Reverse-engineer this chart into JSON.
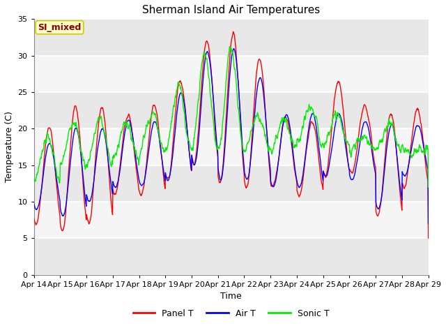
{
  "title": "Sherman Island Air Temperatures",
  "xlabel": "Time",
  "ylabel": "Temperature (C)",
  "ylim": [
    0,
    35
  ],
  "yticks": [
    0,
    5,
    10,
    15,
    20,
    25,
    30,
    35
  ],
  "legend_label": "SI_mixed",
  "legend_text_color": "#8b0000",
  "legend_box_color": "#ffffcc",
  "legend_box_edge": "#cccc00",
  "panel_color": "red",
  "air_color": "blue",
  "sonic_color": "#00ee00",
  "panel_label": "Panel T",
  "air_label": "Air T",
  "sonic_label": "Sonic T",
  "xtick_labels": [
    "Apr 14",
    "Apr 15",
    "Apr 16",
    "Apr 17",
    "Apr 18",
    "Apr 19",
    "Apr 20",
    "Apr 21",
    "Apr 22",
    "Apr 23",
    "Apr 24",
    "Apr 25",
    "Apr 26",
    "Apr 27",
    "Apr 28",
    "Apr 29"
  ],
  "lw": 1.0,
  "title_fontsize": 11,
  "axis_fontsize": 9,
  "tick_fontsize": 8
}
